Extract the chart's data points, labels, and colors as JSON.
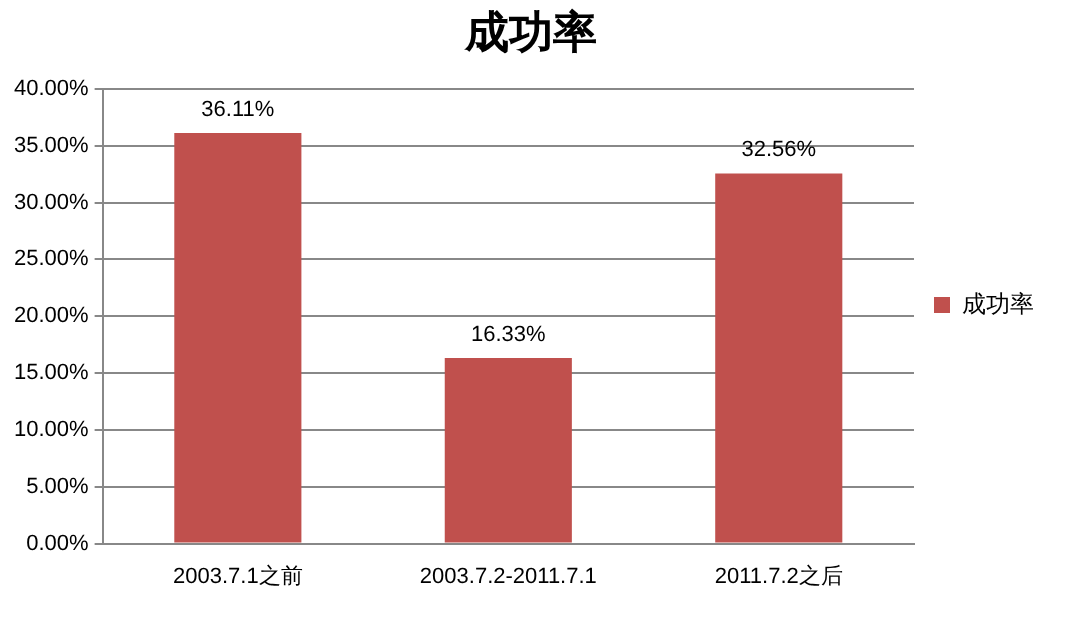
{
  "chart_data": {
    "type": "bar",
    "title": "成功率",
    "categories": [
      "2003.7.1之前",
      "2003.7.2-2011.7.1",
      "2011.7.2之后"
    ],
    "series": [
      {
        "name": "成功率",
        "color": "#c0504d",
        "values": [
          36.11,
          16.33,
          32.56
        ],
        "value_labels": [
          "36.11%",
          "16.33%",
          "32.56%"
        ]
      }
    ],
    "ylim": [
      0,
      40
    ],
    "yticks": [
      {
        "value": 0,
        "label": "0.00%"
      },
      {
        "value": 5,
        "label": "5.00%"
      },
      {
        "value": 10,
        "label": "10.00%"
      },
      {
        "value": 15,
        "label": "15.00%"
      },
      {
        "value": 20,
        "label": "20.00%"
      },
      {
        "value": 25,
        "label": "25.00%"
      },
      {
        "value": 30,
        "label": "30.00%"
      },
      {
        "value": 35,
        "label": "35.00%"
      },
      {
        "value": 40,
        "label": "40.00%"
      }
    ],
    "grid": "y",
    "legend": "right"
  }
}
